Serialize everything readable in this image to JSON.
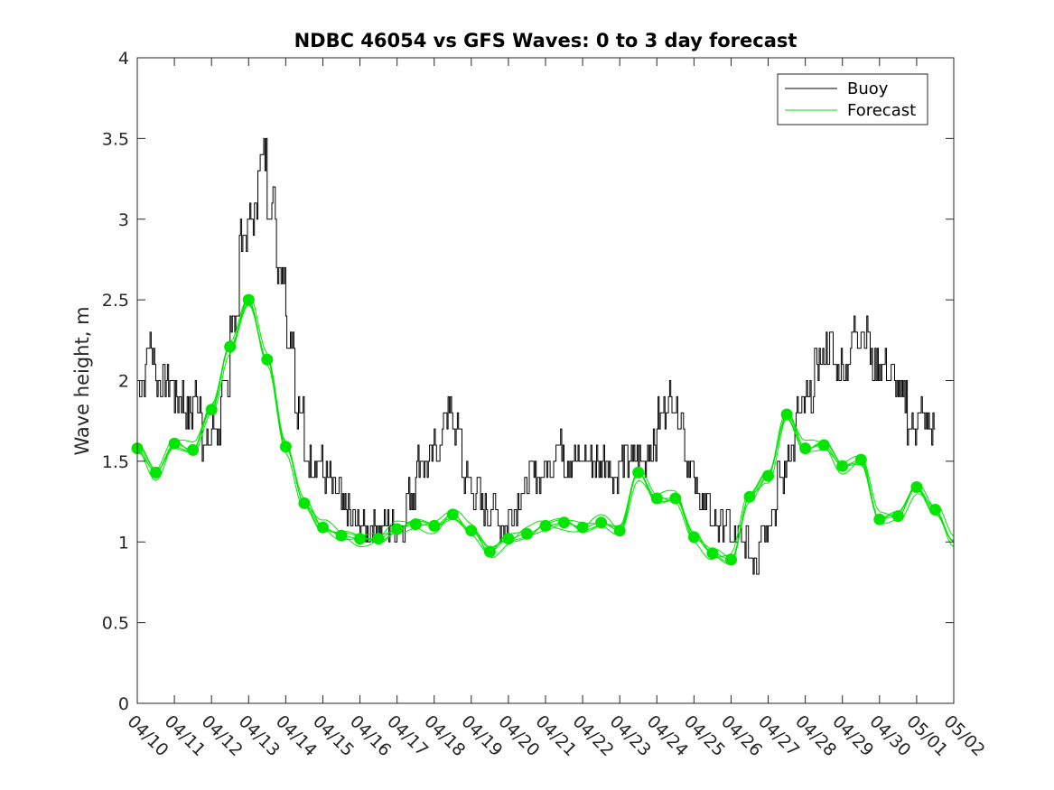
{
  "chart_data": {
    "type": "line",
    "title": "NDBC 46054 vs GFS Waves: 0 to 3 day forecast",
    "xlabel": "",
    "ylabel": "Wave height, m",
    "x_unit": "day",
    "x_tick_labels": [
      "04/10",
      "04/11",
      "04/12",
      "04/13",
      "04/14",
      "04/15",
      "04/16",
      "04/17",
      "04/18",
      "04/19",
      "04/20",
      "04/21",
      "04/22",
      "04/23",
      "04/24",
      "04/25",
      "04/26",
      "04/27",
      "04/28",
      "04/29",
      "04/30",
      "05/01",
      "05/02"
    ],
    "y_ticks": [
      "0",
      "0.5",
      "1",
      "1.5",
      "2",
      "2.5",
      "3",
      "3.5",
      "4"
    ],
    "ylim": [
      0,
      4
    ],
    "grid": false,
    "legend_position": "top-right",
    "colors": {
      "buoy": "#000000",
      "forecast": "#00e600",
      "axes": "#262626"
    },
    "series": [
      {
        "name": "Buoy",
        "color": "#000000",
        "x": [
          "04/10 00:00",
          "04/10 06:00",
          "04/10 12:00",
          "04/10 18:00",
          "04/11 00:00",
          "04/11 06:00",
          "04/11 12:00",
          "04/11 18:00",
          "04/12 00:00",
          "04/12 06:00",
          "04/12 12:00",
          "04/12 18:00",
          "04/13 00:00",
          "04/13 06:00",
          "04/13 12:00",
          "04/13 18:00",
          "04/14 00:00",
          "04/14 06:00",
          "04/14 12:00",
          "04/14 18:00",
          "04/15 00:00",
          "04/15 06:00",
          "04/15 12:00",
          "04/15 18:00",
          "04/16 00:00",
          "04/16 06:00",
          "04/16 12:00",
          "04/16 18:00",
          "04/17 00:00",
          "04/17 06:00",
          "04/17 12:00",
          "04/17 18:00",
          "04/18 00:00",
          "04/18 06:00",
          "04/18 12:00",
          "04/18 18:00",
          "04/19 00:00",
          "04/19 06:00",
          "04/19 12:00",
          "04/19 18:00",
          "04/20 00:00",
          "04/20 06:00",
          "04/20 12:00",
          "04/20 18:00",
          "04/21 00:00",
          "04/21 06:00",
          "04/21 12:00",
          "04/21 18:00",
          "04/22 00:00",
          "04/22 06:00",
          "04/22 12:00",
          "04/22 18:00",
          "04/23 00:00",
          "04/23 06:00",
          "04/23 12:00",
          "04/23 18:00",
          "04/24 00:00",
          "04/24 06:00",
          "04/24 12:00",
          "04/24 18:00",
          "04/25 00:00",
          "04/25 06:00",
          "04/25 12:00",
          "04/25 18:00",
          "04/26 00:00",
          "04/26 06:00",
          "04/26 12:00",
          "04/26 18:00",
          "04/27 00:00",
          "04/27 06:00",
          "04/27 12:00",
          "04/27 18:00",
          "04/28 00:00",
          "04/28 06:00",
          "04/28 12:00",
          "04/28 18:00",
          "04/29 00:00",
          "04/29 06:00",
          "04/29 12:00",
          "04/29 18:00",
          "04/30 00:00",
          "04/30 06:00",
          "04/30 12:00",
          "04/30 18:00",
          "05/01 00:00",
          "05/01 06:00"
        ],
        "values": [
          2.0,
          2.2,
          2.0,
          2.0,
          1.9,
          1.8,
          1.9,
          1.6,
          1.7,
          1.9,
          2.4,
          2.9,
          3.0,
          3.4,
          3.1,
          2.7,
          2.3,
          1.8,
          1.5,
          1.5,
          1.4,
          1.3,
          1.2,
          1.1,
          1.1,
          1.1,
          1.1,
          1.1,
          1.1,
          1.3,
          1.5,
          1.5,
          1.6,
          1.8,
          1.7,
          1.4,
          1.3,
          1.2,
          1.2,
          1.1,
          1.2,
          1.3,
          1.4,
          1.4,
          1.5,
          1.6,
          1.5,
          1.5,
          1.5,
          1.5,
          1.5,
          1.4,
          1.5,
          1.5,
          1.5,
          1.6,
          1.8,
          1.9,
          1.8,
          1.5,
          1.3,
          1.2,
          1.1,
          1.1,
          1.0,
          1.0,
          0.9,
          1.1,
          1.2,
          1.4,
          1.6,
          1.8,
          1.9,
          2.1,
          2.2,
          2.1,
          2.1,
          2.3,
          2.3,
          2.1,
          2.1,
          2.0,
          1.9,
          1.7,
          1.8,
          1.7
        ]
      },
      {
        "name": "Forecast",
        "color": "#00e600",
        "x": [
          "04/10 00:00",
          "04/10 12:00",
          "04/11 00:00",
          "04/11 12:00",
          "04/12 00:00",
          "04/12 12:00",
          "04/13 00:00",
          "04/13 12:00",
          "04/14 00:00",
          "04/14 12:00",
          "04/15 00:00",
          "04/15 12:00",
          "04/16 00:00",
          "04/16 12:00",
          "04/17 00:00",
          "04/17 12:00",
          "04/18 00:00",
          "04/18 12:00",
          "04/19 00:00",
          "04/19 12:00",
          "04/20 00:00",
          "04/20 12:00",
          "04/21 00:00",
          "04/21 12:00",
          "04/22 00:00",
          "04/22 12:00",
          "04/23 00:00",
          "04/23 12:00",
          "04/24 00:00",
          "04/24 12:00",
          "04/25 00:00",
          "04/25 12:00",
          "04/26 00:00",
          "04/26 12:00",
          "04/27 00:00",
          "04/27 12:00",
          "04/28 00:00",
          "04/28 12:00",
          "04/29 00:00",
          "04/29 12:00",
          "04/30 00:00",
          "04/30 12:00",
          "05/01 00:00",
          "05/01 12:00",
          "05/02 00:00"
        ],
        "values": [
          1.58,
          1.43,
          1.61,
          1.57,
          1.82,
          2.21,
          2.5,
          2.13,
          1.59,
          1.24,
          1.09,
          1.04,
          1.02,
          1.02,
          1.08,
          1.11,
          1.1,
          1.17,
          1.07,
          0.94,
          1.02,
          1.05,
          1.1,
          1.12,
          1.09,
          1.12,
          1.07,
          1.43,
          1.27,
          1.27,
          1.03,
          0.93,
          0.89,
          1.28,
          1.41,
          1.79,
          1.58,
          1.6,
          1.47,
          1.51,
          1.14,
          1.16,
          1.34,
          1.2,
          1.0
        ]
      }
    ]
  }
}
